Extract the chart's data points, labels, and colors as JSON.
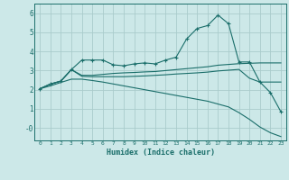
{
  "xlabel": "Humidex (Indice chaleur)",
  "background_color": "#cce8e8",
  "grid_color": "#aacccc",
  "line_color": "#1a6e6a",
  "xlim": [
    -0.5,
    23.5
  ],
  "ylim": [
    -0.65,
    6.5
  ],
  "xticks": [
    0,
    1,
    2,
    3,
    4,
    5,
    6,
    7,
    8,
    9,
    10,
    11,
    12,
    13,
    14,
    15,
    16,
    17,
    18,
    19,
    20,
    21,
    22,
    23
  ],
  "yticks": [
    0,
    1,
    2,
    3,
    4,
    5,
    6
  ],
  "ytick_labels": [
    "-0",
    "1",
    "2",
    "3",
    "4",
    "5",
    "6"
  ],
  "line1_x": [
    0,
    1,
    2,
    3,
    4,
    5,
    6,
    7,
    8,
    9,
    10,
    11,
    12,
    13,
    14,
    15,
    16,
    17,
    18,
    19,
    20,
    21,
    22,
    23
  ],
  "line1_y": [
    2.05,
    2.3,
    2.45,
    3.05,
    3.55,
    3.55,
    3.55,
    3.3,
    3.25,
    3.35,
    3.4,
    3.35,
    3.55,
    3.7,
    4.65,
    5.2,
    5.35,
    5.9,
    5.45,
    3.45,
    3.45,
    2.4,
    1.85,
    0.85
  ],
  "line2_x": [
    0,
    1,
    2,
    3,
    4,
    5,
    6,
    7,
    8,
    9,
    10,
    11,
    12,
    13,
    14,
    15,
    16,
    17,
    18,
    19,
    20,
    21,
    22,
    23
  ],
  "line2_y": [
    2.05,
    2.3,
    2.45,
    3.05,
    2.75,
    2.75,
    2.8,
    2.85,
    2.88,
    2.9,
    2.93,
    2.95,
    3.0,
    3.05,
    3.1,
    3.15,
    3.2,
    3.28,
    3.32,
    3.36,
    3.38,
    3.4,
    3.4,
    3.4
  ],
  "line3_x": [
    0,
    1,
    2,
    3,
    4,
    5,
    6,
    7,
    8,
    9,
    10,
    11,
    12,
    13,
    14,
    15,
    16,
    17,
    18,
    19,
    20,
    21,
    22,
    23
  ],
  "line3_y": [
    2.05,
    2.28,
    2.45,
    3.05,
    2.7,
    2.68,
    2.68,
    2.68,
    2.68,
    2.7,
    2.72,
    2.75,
    2.78,
    2.82,
    2.85,
    2.88,
    2.92,
    2.98,
    3.02,
    3.06,
    2.6,
    2.4,
    2.4,
    2.4
  ],
  "line4_x": [
    0,
    1,
    2,
    3,
    4,
    5,
    6,
    7,
    8,
    9,
    10,
    11,
    12,
    13,
    14,
    15,
    16,
    17,
    18,
    19,
    20,
    21,
    22,
    23
  ],
  "line4_y": [
    2.05,
    2.2,
    2.38,
    2.55,
    2.55,
    2.48,
    2.4,
    2.3,
    2.2,
    2.1,
    2.0,
    1.9,
    1.8,
    1.7,
    1.6,
    1.5,
    1.4,
    1.25,
    1.1,
    0.8,
    0.45,
    0.05,
    -0.25,
    -0.45
  ]
}
